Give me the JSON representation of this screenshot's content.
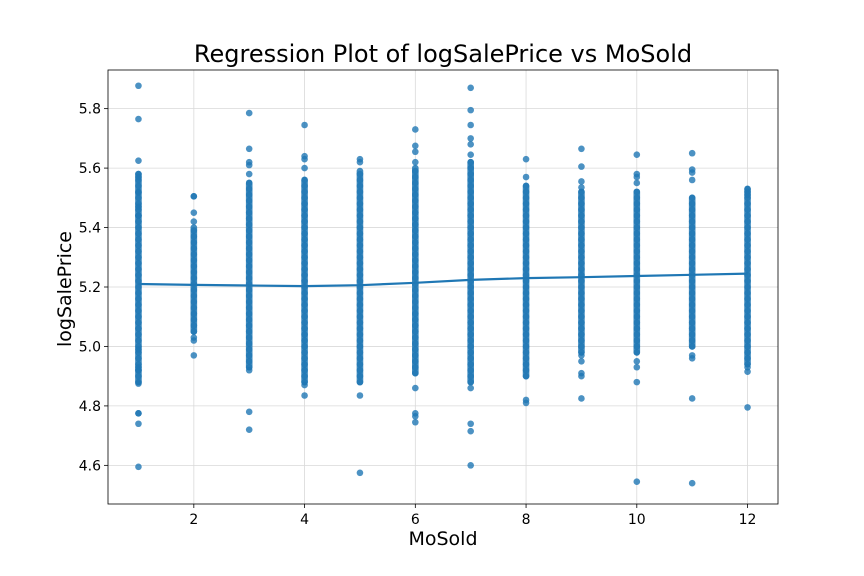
{
  "chart_data": {
    "type": "scatter",
    "title": "Regression Plot of logSalePrice vs MoSold",
    "xlabel": "MoSold",
    "ylabel": "logSalePrice",
    "xlim": [
      0.45,
      12.55
    ],
    "ylim": [
      4.47,
      5.93
    ],
    "xticks": [
      2,
      4,
      6,
      8,
      10,
      12
    ],
    "yticks": [
      4.6,
      4.8,
      5.0,
      5.2,
      5.4,
      5.6,
      5.8
    ],
    "grid": true,
    "point_color": "#1f77b4",
    "line_color": "#1f77b4",
    "regression_line": {
      "x": [
        1,
        2,
        3,
        4,
        5,
        6,
        7,
        8,
        9,
        10,
        11,
        12
      ],
      "y": [
        5.21,
        5.207,
        5.205,
        5.203,
        5.206,
        5.214,
        5.224,
        5.23,
        5.233,
        5.237,
        5.241,
        5.245
      ]
    },
    "columns": [
      {
        "x": 1,
        "min": 4.88,
        "max": 5.58,
        "points": [
          5.877,
          5.765,
          5.625,
          5.57,
          5.518,
          5.47,
          5.44,
          4.99,
          4.93,
          4.92,
          4.875,
          4.775,
          4.775,
          4.74,
          4.595
        ]
      },
      {
        "x": 2,
        "min": 5.05,
        "max": 5.4,
        "points": [
          5.505,
          5.505,
          5.45,
          5.42,
          5.03,
          5.02,
          4.97
        ]
      },
      {
        "x": 3,
        "min": 4.93,
        "max": 5.55,
        "points": [
          5.785,
          5.665,
          5.62,
          5.61,
          5.58,
          4.92,
          4.78,
          4.72
        ]
      },
      {
        "x": 4,
        "min": 4.88,
        "max": 5.56,
        "points": [
          5.745,
          5.64,
          5.63,
          5.6,
          4.87,
          4.835
        ]
      },
      {
        "x": 5,
        "min": 4.88,
        "max": 5.59,
        "points": [
          5.63,
          5.62,
          4.835,
          4.575
        ]
      },
      {
        "x": 6,
        "min": 4.91,
        "max": 5.6,
        "points": [
          5.73,
          5.675,
          5.655,
          5.62,
          4.86,
          4.775,
          4.765,
          4.745
        ]
      },
      {
        "x": 7,
        "min": 4.88,
        "max": 5.62,
        "points": [
          5.87,
          5.795,
          5.745,
          5.7,
          5.68,
          5.645,
          4.86,
          4.74,
          4.715,
          4.6
        ]
      },
      {
        "x": 8,
        "min": 4.9,
        "max": 5.54,
        "points": [
          5.63,
          5.57,
          4.82,
          4.81
        ]
      },
      {
        "x": 9,
        "min": 4.98,
        "max": 5.52,
        "points": [
          5.665,
          5.605,
          5.555,
          5.535,
          4.97,
          4.95,
          4.91,
          4.9,
          4.825
        ]
      },
      {
        "x": 10,
        "min": 4.98,
        "max": 5.52,
        "points": [
          5.645,
          5.58,
          5.57,
          5.55,
          4.95,
          4.93,
          4.88,
          4.545
        ]
      },
      {
        "x": 11,
        "min": 5.0,
        "max": 5.5,
        "points": [
          5.65,
          5.595,
          5.585,
          5.56,
          4.97,
          4.96,
          4.825,
          4.54
        ]
      },
      {
        "x": 12,
        "min": 4.94,
        "max": 5.53,
        "points": [
          5.53,
          5.51,
          4.93,
          4.915,
          4.795
        ]
      }
    ]
  }
}
